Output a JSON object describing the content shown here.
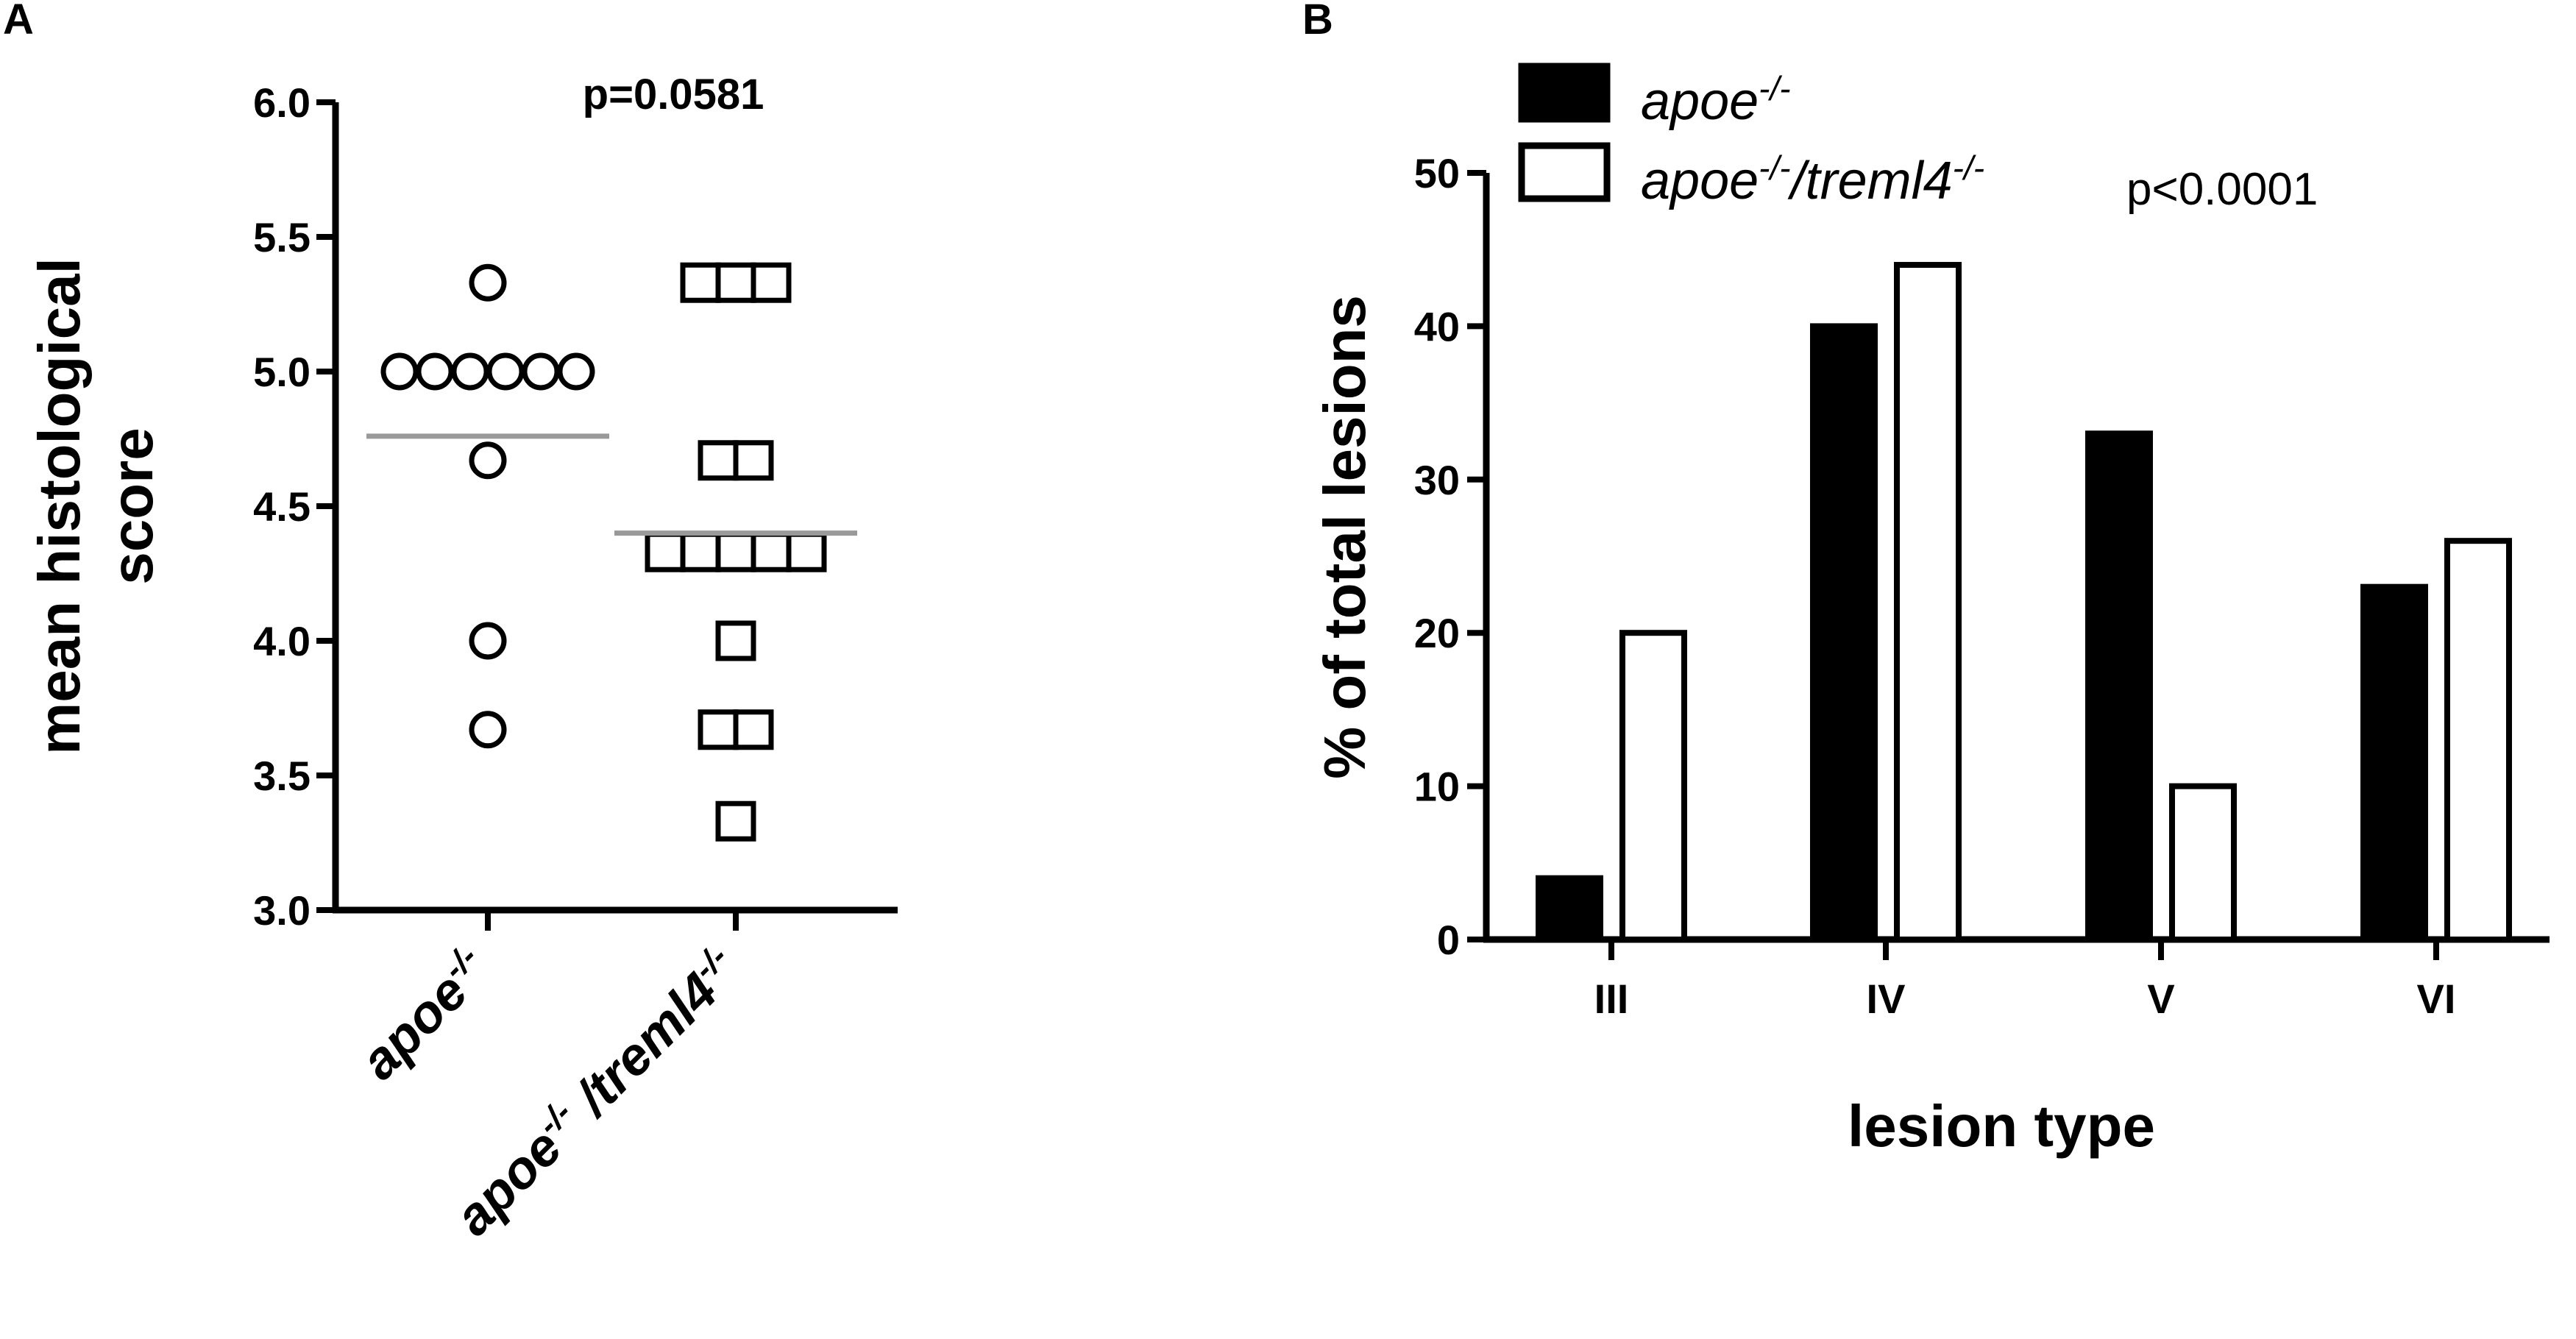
{
  "panels": {
    "a": {
      "letter": "A"
    },
    "b": {
      "letter": "B"
    }
  },
  "chart_data": [
    {
      "type": "scatter",
      "title": "",
      "annotation": "p=0.0581",
      "ylabel_line1": "mean histological",
      "ylabel_line2": "score",
      "ylim": [
        3.0,
        6.0
      ],
      "yticks": [
        "3.0",
        "3.5",
        "4.0",
        "4.5",
        "5.0",
        "5.5",
        "6.0"
      ],
      "grid": false,
      "categories": [
        {
          "base": "apoe",
          "sup": "-/-",
          "part2": "",
          "sup2": ""
        },
        {
          "base": "apoe",
          "sup": "-/-",
          "part2": " /treml4",
          "sup2": "-/-"
        }
      ],
      "series": [
        {
          "marker": "circle",
          "mean": 4.76,
          "values": [
            5.33,
            5.0,
            5.0,
            5.0,
            5.0,
            5.0,
            5.0,
            4.67,
            4.0,
            3.67
          ]
        },
        {
          "marker": "square",
          "mean": 4.4,
          "values": [
            5.33,
            5.33,
            5.33,
            4.67,
            4.67,
            4.33,
            4.33,
            4.33,
            4.33,
            4.33,
            4.0,
            3.67,
            3.67,
            3.33
          ]
        }
      ]
    },
    {
      "type": "bar",
      "title": "",
      "annotation": "p<0.0001",
      "xlabel": "lesion type",
      "ylabel": "% of total lesions",
      "ylim": [
        0,
        50
      ],
      "yticks": [
        "0",
        "10",
        "20",
        "30",
        "40",
        "50"
      ],
      "grid": false,
      "legend_position": "top-left",
      "categories": [
        "III",
        "IV",
        "V",
        "VI"
      ],
      "series": [
        {
          "legend_base": "apoe",
          "legend_sup": "-/-",
          "legend_part2": "",
          "legend_sup2": "",
          "fill": "#000000",
          "values": [
            4,
            40,
            33,
            23
          ]
        },
        {
          "legend_base": "apoe",
          "legend_sup": "-/-",
          "legend_part2": "/treml4",
          "legend_sup2": "-/-",
          "fill": "#ffffff",
          "values": [
            20,
            44,
            10,
            26
          ]
        }
      ]
    }
  ],
  "colors": {
    "ink": "#000000",
    "mean_line": "#999999",
    "background": "#ffffff"
  }
}
